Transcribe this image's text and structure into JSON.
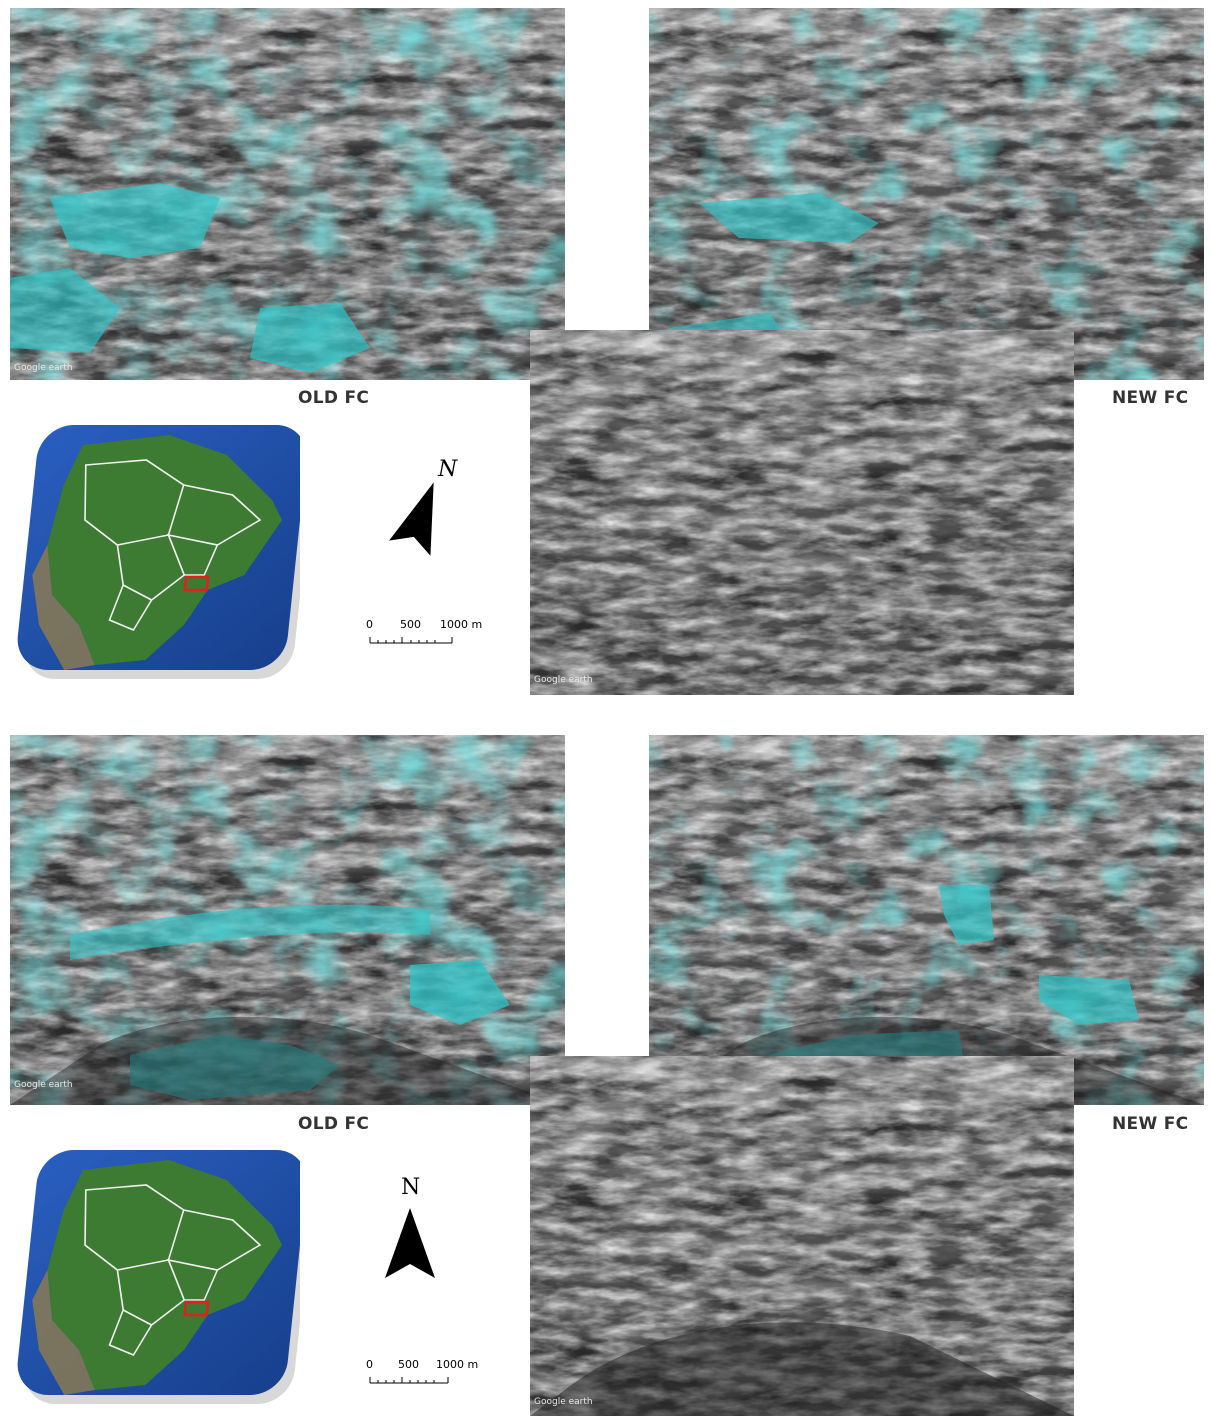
{
  "figure": {
    "sections": [
      {
        "old_caption": "OLD FC",
        "new_caption": "NEW FC",
        "north_label": "N",
        "scale": {
          "ticks": [
            "0",
            "500",
            "1000 m"
          ]
        },
        "watermark": "Google earth"
      },
      {
        "old_caption": "OLD FC",
        "new_caption": "NEW FC",
        "north_label": "N",
        "scale": {
          "ticks": [
            "0",
            "500",
            "1000 m"
          ]
        },
        "watermark": "Google earth"
      }
    ]
  },
  "colors": {
    "overlay": "#2ec4c8",
    "terrain_dark": "#2b2b2b",
    "terrain_light": "#9a9a9a",
    "ocean": "#1f4fa8",
    "land": "#3d7a32",
    "highlight_box": "#e02020"
  },
  "icons": [
    "north-arrow-icon",
    "scale-bar-icon",
    "locator-map-icon"
  ]
}
